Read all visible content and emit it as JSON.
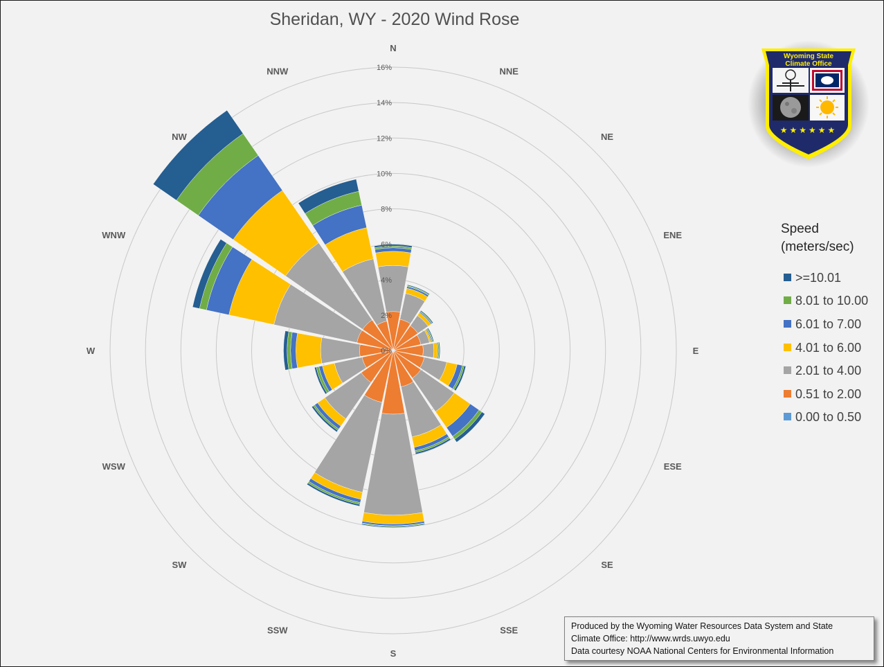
{
  "chart_data": {
    "type": "wind-rose",
    "title": "Sheridan, WY - 2020 Wind Rose",
    "directions": [
      "N",
      "NNE",
      "NE",
      "ENE",
      "E",
      "ESE",
      "SE",
      "SSE",
      "S",
      "SSW",
      "SW",
      "WSW",
      "W",
      "WNW",
      "NW",
      "NNW"
    ],
    "radial_ticks": [
      "0%",
      "2%",
      "4%",
      "6%",
      "8%",
      "10%",
      "12%",
      "14%",
      "16%"
    ],
    "rmax": 16,
    "sector_order": [
      "N",
      "NNE",
      "NE",
      "ENE",
      "E",
      "ESE",
      "SE",
      "SSE",
      "S",
      "SSW",
      "SW",
      "WSW",
      "W",
      "WNW",
      "NW",
      "NNW"
    ],
    "series": [
      {
        "name": "0.00 to 0.50",
        "color": "#5b9bd5",
        "values": [
          0.1,
          0.1,
          0.1,
          0.1,
          0.1,
          0.1,
          0.1,
          0.1,
          0.1,
          0.1,
          0.1,
          0.1,
          0.1,
          0.1,
          0.1,
          0.1
        ]
      },
      {
        "name": "0.51 to 2.00",
        "color": "#ed7d31",
        "values": [
          2.1,
          1.7,
          1.6,
          1.5,
          1.6,
          1.7,
          1.8,
          2.0,
          3.5,
          2.9,
          2.1,
          1.7,
          1.8,
          2.0,
          2.0,
          1.6
        ]
      },
      {
        "name": "2.01 to 4.00",
        "color": "#a5a5a5",
        "values": [
          2.6,
          1.5,
          0.7,
          0.5,
          0.6,
          1.3,
          2.3,
          2.9,
          5.7,
          5.2,
          2.5,
          1.6,
          2.2,
          4.8,
          5.3,
          3.6
        ]
      },
      {
        "name": "4.01 to 6.00",
        "color": "#ffc000",
        "values": [
          0.8,
          0.3,
          0.2,
          0.1,
          0.2,
          0.6,
          1.1,
          0.6,
          0.5,
          0.4,
          0.5,
          0.7,
          1.4,
          2.6,
          3.6,
          1.8
        ]
      },
      {
        "name": "6.01 to 7.00",
        "color": "#4472c4",
        "values": [
          0.2,
          0.1,
          0.05,
          0.05,
          0.05,
          0.3,
          0.6,
          0.2,
          0.1,
          0.2,
          0.2,
          0.2,
          0.3,
          1.3,
          2.4,
          1.3
        ]
      },
      {
        "name": "8.01 to 10.00",
        "color": "#70ad47",
        "values": [
          0.1,
          0.05,
          0.05,
          0.05,
          0.05,
          0.1,
          0.2,
          0.1,
          0.05,
          0.1,
          0.1,
          0.15,
          0.2,
          0.4,
          1.5,
          0.8
        ]
      },
      {
        "name": ">=10.01",
        "color": "#255e91",
        "values": [
          0.1,
          0.05,
          0.05,
          0.05,
          0.05,
          0.1,
          0.2,
          0.1,
          0.05,
          0.1,
          0.1,
          0.1,
          0.2,
          0.4,
          1.6,
          0.7
        ]
      }
    ],
    "legend_position": "right"
  },
  "legend": {
    "title_line1": "Speed",
    "title_line2": "(meters/sec)",
    "items": [
      {
        "label": ">=10.01",
        "color": "#255e91"
      },
      {
        "label": "8.01 to 10.00",
        "color": "#70ad47"
      },
      {
        "label": "6.01 to 7.00",
        "color": "#4472c4"
      },
      {
        "label": "4.01 to 6.00",
        "color": "#ffc000"
      },
      {
        "label": "2.01 to 4.00",
        "color": "#a5a5a5"
      },
      {
        "label": "0.51 to 2.00",
        "color": "#ed7d31"
      },
      {
        "label": "0.00 to 0.50",
        "color": "#5b9bd5"
      }
    ]
  },
  "credit": {
    "line1": "Produced by the Wyoming Water Resources Data System and State",
    "line2": "Climate Office: http://www.wrds.uwyo.edu",
    "line3": "Data courtesy NOAA National Centers for Environmental Information"
  },
  "logo": {
    "text_line1": "Wyoming State",
    "text_line2": "Climate Office",
    "colors": {
      "navy": "#1f2a6b",
      "yellow": "#ffee00"
    }
  }
}
